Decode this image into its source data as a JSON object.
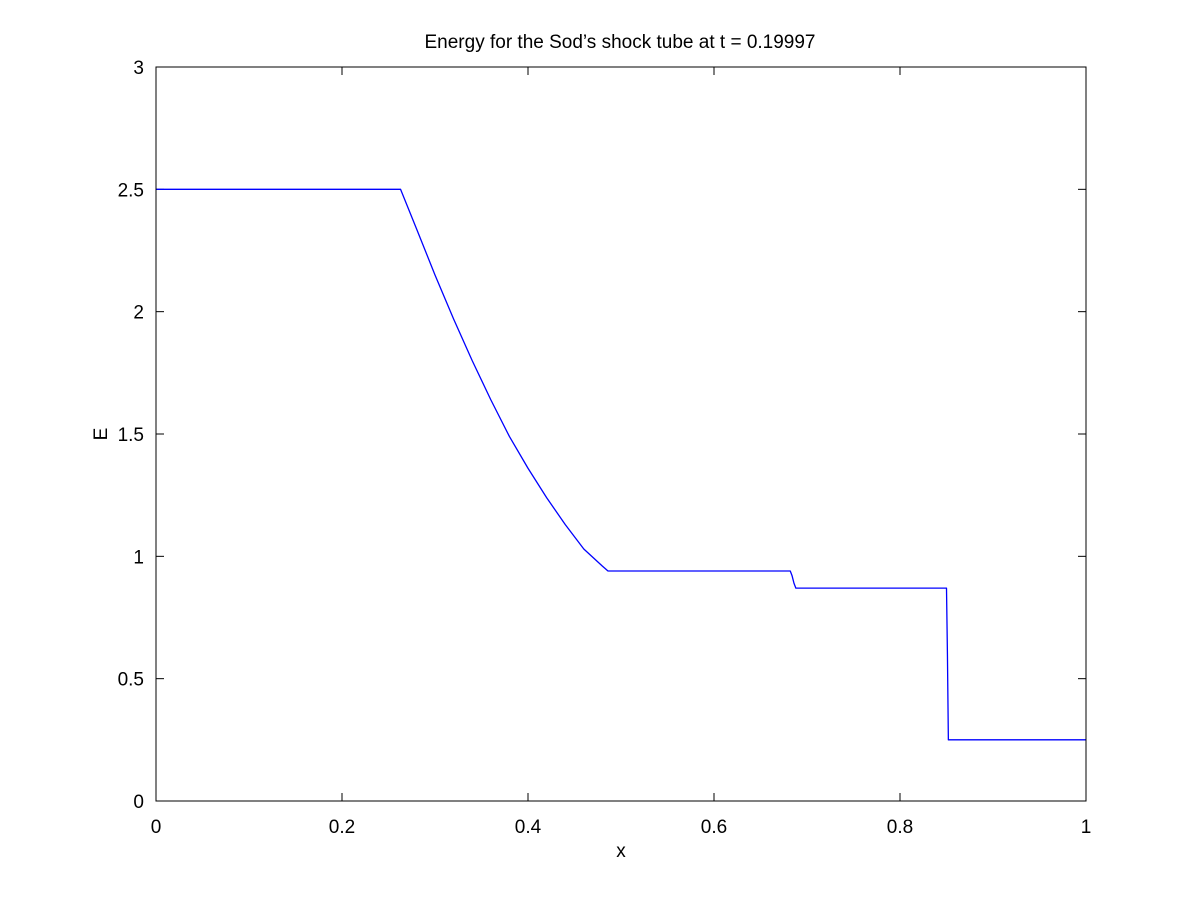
{
  "chart_data": {
    "type": "line",
    "title": "Energy for the Sod’s shock tube at t = 0.19997",
    "xlabel": "x",
    "ylabel": "E",
    "xlim": [
      0,
      1
    ],
    "ylim": [
      0,
      3
    ],
    "xticks": [
      0,
      0.2,
      0.4,
      0.6,
      0.8,
      1
    ],
    "xtick_labels": [
      "0",
      "0.2",
      "0.4",
      "0.6",
      "0.8",
      "1"
    ],
    "yticks": [
      0,
      0.5,
      1,
      1.5,
      2,
      2.5,
      3
    ],
    "ytick_labels": [
      "0",
      "0.5",
      "1",
      "1.5",
      "2",
      "2.5",
      "3"
    ],
    "grid": false,
    "series": [
      {
        "color": "#0000ff",
        "x": [
          0,
          0.1,
          0.2,
          0.263,
          0.28,
          0.3,
          0.32,
          0.34,
          0.36,
          0.38,
          0.4,
          0.42,
          0.44,
          0.46,
          0.48,
          0.486,
          0.55,
          0.6,
          0.65,
          0.682,
          0.684,
          0.686,
          0.688,
          0.7,
          0.75,
          0.8,
          0.85,
          0.851,
          0.852,
          0.855,
          0.9,
          0.95,
          1.0
        ],
        "y": [
          2.5,
          2.5,
          2.5,
          2.5,
          2.34,
          2.15,
          1.97,
          1.8,
          1.64,
          1.49,
          1.36,
          1.24,
          1.13,
          1.03,
          0.96,
          0.94,
          0.94,
          0.94,
          0.94,
          0.94,
          0.92,
          0.89,
          0.87,
          0.87,
          0.87,
          0.87,
          0.87,
          0.6,
          0.25,
          0.25,
          0.25,
          0.25,
          0.25
        ]
      }
    ]
  }
}
